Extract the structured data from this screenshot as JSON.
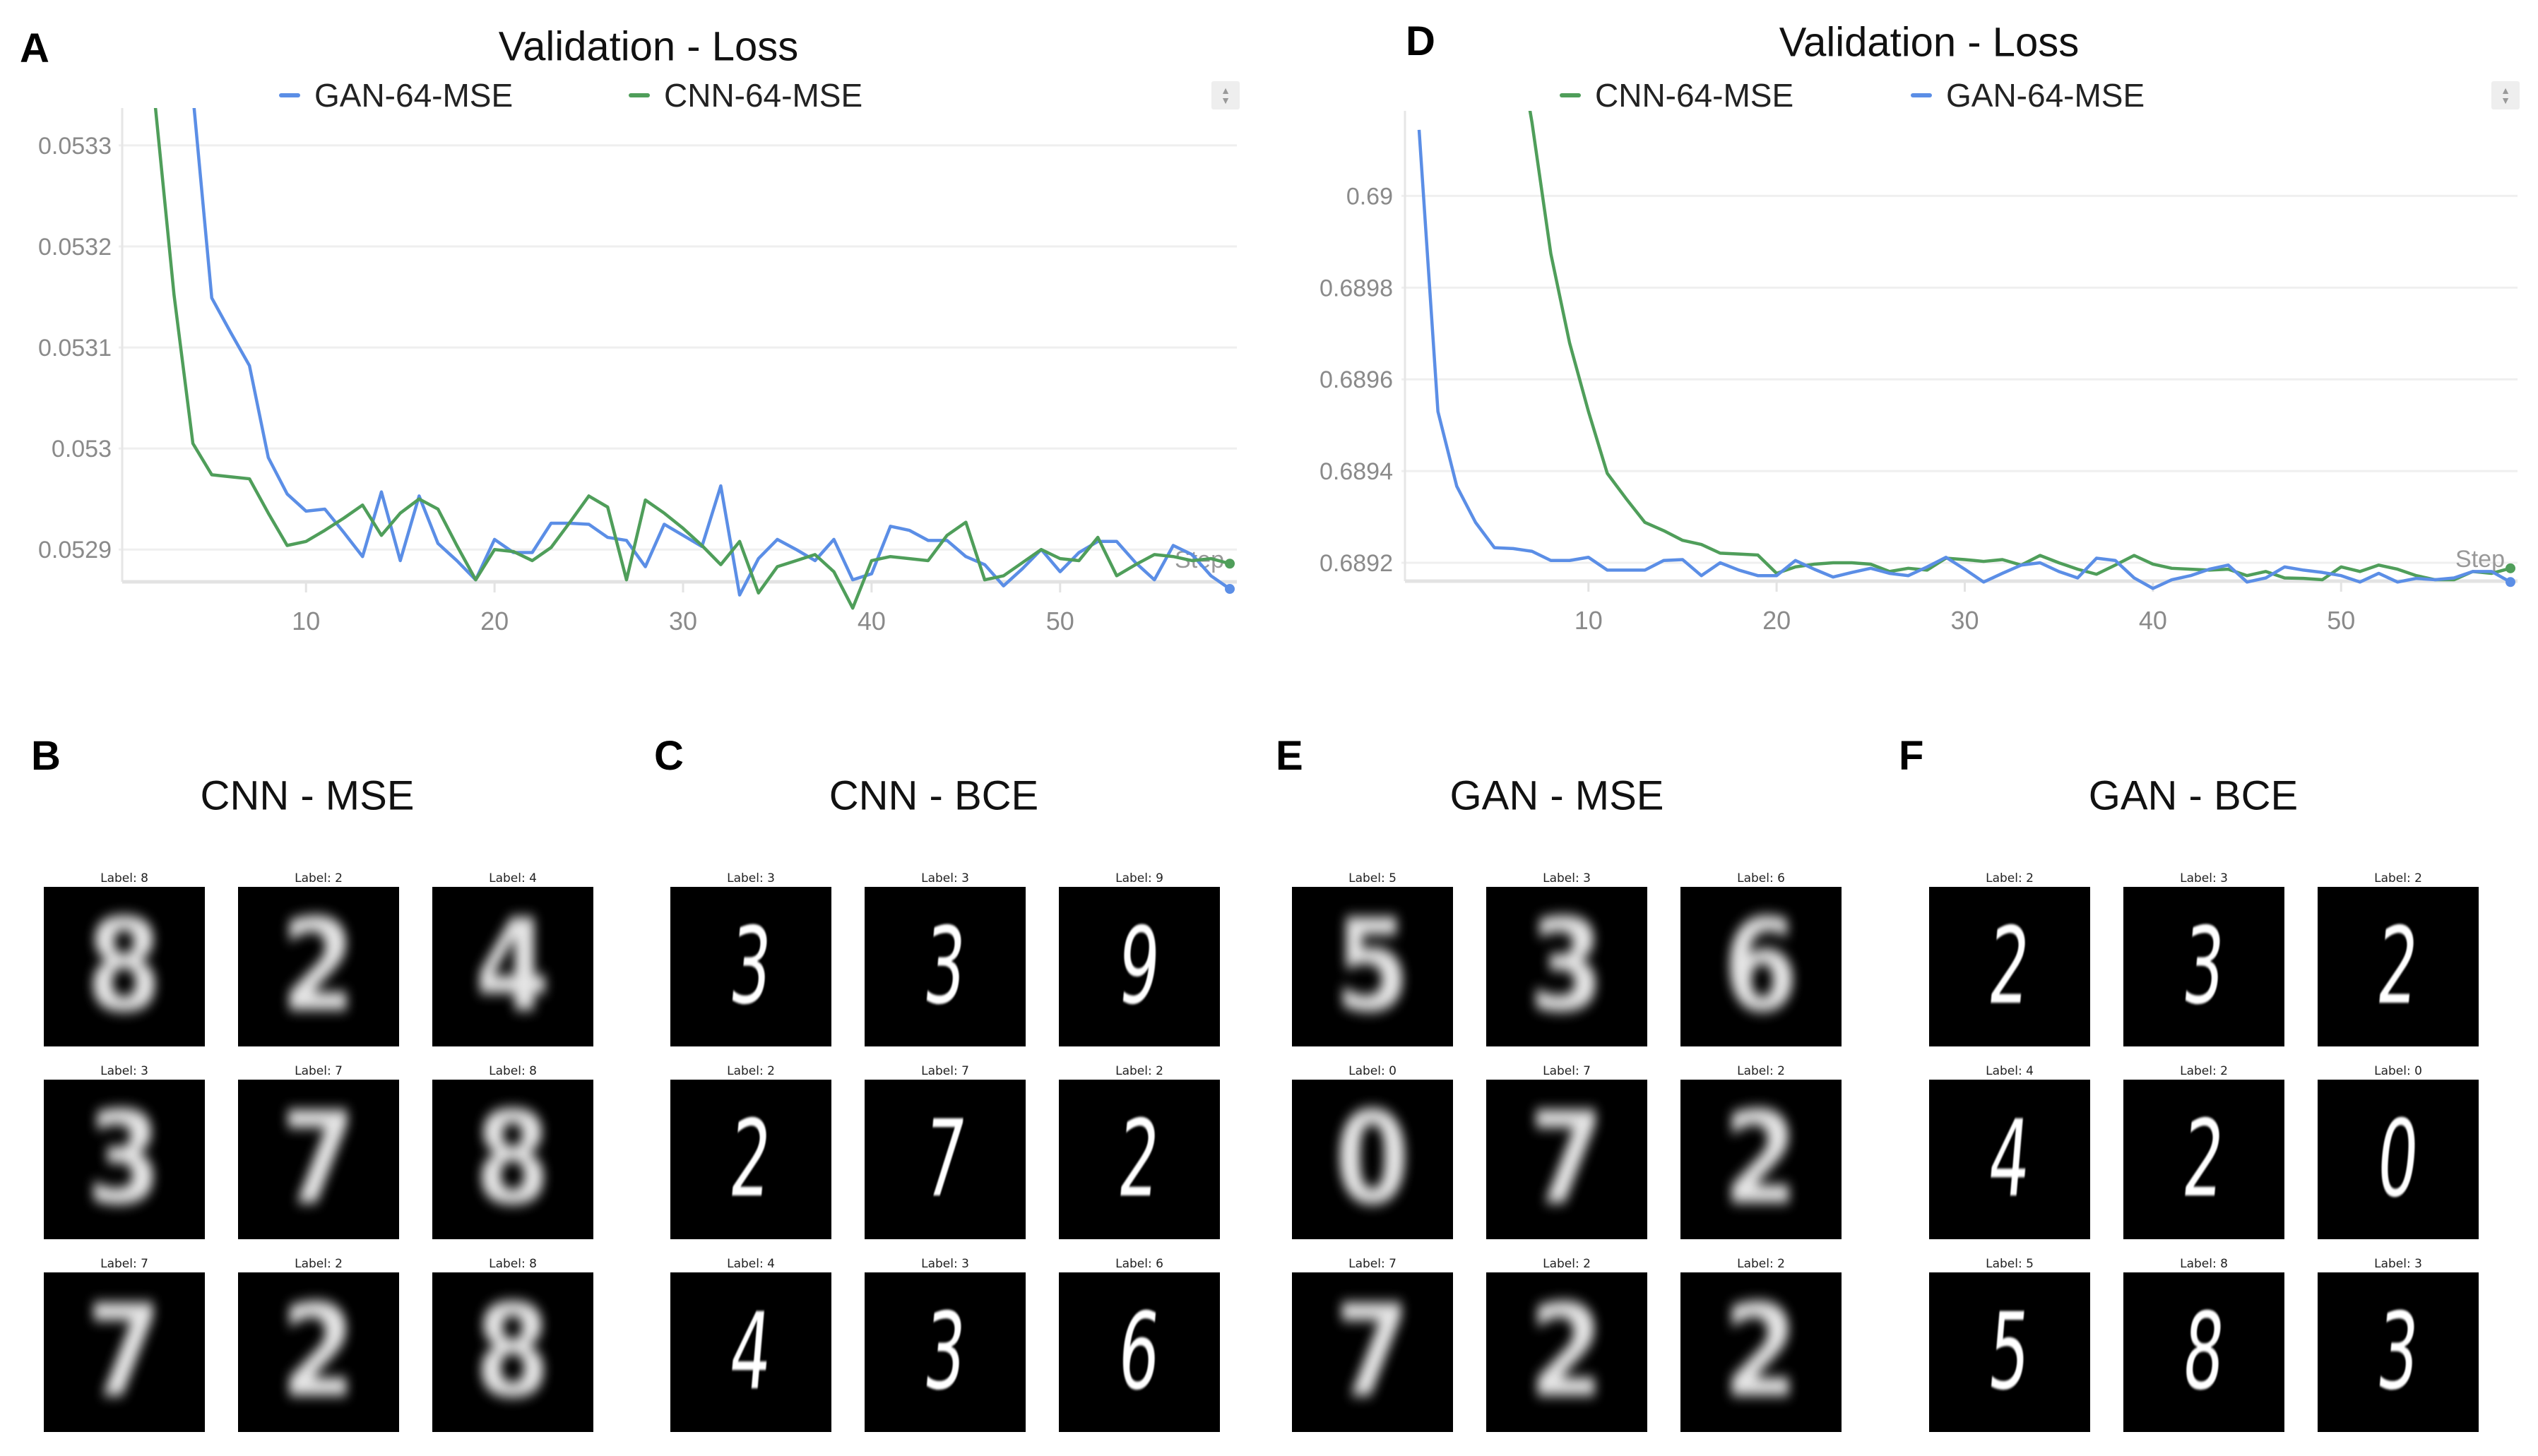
{
  "chart_data": [
    {
      "panel": "A",
      "type": "line",
      "title": "Validation - Loss",
      "xlabel": "Step",
      "ylabel": "",
      "xlim": [
        1,
        59
      ],
      "ylim": [
        0.052868,
        0.05333
      ],
      "xticks": [
        10,
        20,
        30,
        40,
        50
      ],
      "xtick_labels": [
        "10",
        "20",
        "30",
        "40",
        "50"
      ],
      "yticks": [
        0.0529,
        0.053,
        0.0531,
        0.0532,
        0.0533
      ],
      "ytick_labels": [
        "0.0529",
        "0.053",
        "0.0531",
        "0.0532",
        "0.0533"
      ],
      "grid": true,
      "legend_position": "top",
      "series": [
        {
          "name": "GAN-64-MSE",
          "color": "#5b8ee6",
          "x_start": 4,
          "values": [
            0.05335,
            0.053149,
            0.053115,
            0.053082,
            0.052991,
            0.052955,
            0.052938,
            0.05294,
            0.052917,
            0.052893,
            0.052957,
            0.052889,
            0.052953,
            0.052906,
            0.052889,
            0.05287,
            0.05291,
            0.052897,
            0.052897,
            0.052926,
            0.052926,
            0.052925,
            0.052912,
            0.052909,
            0.052883,
            0.052925,
            0.052914,
            0.052903,
            0.052963,
            0.052855,
            0.052891,
            0.05291,
            0.0529,
            0.052889,
            0.05291,
            0.05287,
            0.052876,
            0.052923,
            0.052919,
            0.052909,
            0.052909,
            0.052893,
            0.052885,
            0.052864,
            0.052881,
            0.0529,
            0.052878,
            0.052897,
            0.052908,
            0.052908,
            0.052887,
            0.05287,
            0.052904,
            0.052895,
            0.052874,
            0.052861
          ]
        },
        {
          "name": "CNN-64-MSE",
          "color": "#4f9e5a",
          "x_start": 2,
          "values": [
            0.05334,
            0.053152,
            0.053005,
            0.052974,
            0.052972,
            0.05297,
            0.052936,
            0.052904,
            0.052908,
            0.052919,
            0.052931,
            0.052944,
            0.052914,
            0.052936,
            0.05295,
            0.05294,
            0.052904,
            0.05287,
            0.0529,
            0.052898,
            0.052889,
            0.052902,
            0.052927,
            0.052953,
            0.052942,
            0.05287,
            0.052949,
            0.052936,
            0.052921,
            0.052904,
            0.052885,
            0.052908,
            0.052857,
            0.052883,
            0.052889,
            0.052895,
            0.052878,
            0.052842,
            0.052889,
            0.052893,
            0.052891,
            0.052889,
            0.052914,
            0.052927,
            0.05287,
            0.052874,
            0.052887,
            0.0529,
            0.052891,
            0.052889,
            0.052912,
            0.052874,
            0.052885,
            0.052895,
            0.052893,
            0.052889,
            0.052891,
            0.052886
          ]
        }
      ]
    },
    {
      "panel": "D",
      "type": "line",
      "title": "Validation - Loss",
      "xlabel": "Step",
      "ylabel": "",
      "xlim": [
        1,
        59
      ],
      "ylim": [
        0.68916,
        0.69017
      ],
      "xticks": [
        10,
        20,
        30,
        40,
        50
      ],
      "xtick_labels": [
        "10",
        "20",
        "30",
        "40",
        "50"
      ],
      "yticks": [
        0.6892,
        0.6894,
        0.6896,
        0.6898,
        0.69
      ],
      "ytick_labels": [
        "0.6892",
        "0.6894",
        "0.6896",
        "0.6898",
        "0.69"
      ],
      "grid": true,
      "legend_position": "top",
      "series": [
        {
          "name": "CNN-64-MSE",
          "color": "#4f9e5a",
          "x_start": 6,
          "values": [
            0.6904,
            0.69016,
            0.689874,
            0.689679,
            0.68953,
            0.689395,
            0.68934,
            0.689288,
            0.68927,
            0.689249,
            0.68924,
            0.689221,
            0.689219,
            0.689217,
            0.689177,
            0.689191,
            0.689197,
            0.6892,
            0.6892,
            0.689197,
            0.689181,
            0.689188,
            0.689184,
            0.68921,
            0.689207,
            0.689203,
            0.689207,
            0.689195,
            0.689216,
            0.6892,
            0.689186,
            0.689175,
            0.689195,
            0.689216,
            0.689197,
            0.689188,
            0.689186,
            0.689184,
            0.689186,
            0.689172,
            0.689181,
            0.689167,
            0.689166,
            0.689163,
            0.689191,
            0.689181,
            0.689195,
            0.689186,
            0.689172,
            0.689163,
            0.689163,
            0.689181,
            0.689177,
            0.689188
          ]
        },
        {
          "name": "GAN-64-MSE",
          "color": "#5b8ee6",
          "x_start": 1,
          "values": [
            0.690144,
            0.68953,
            0.689367,
            0.689288,
            0.689233,
            0.689231,
            0.689225,
            0.689205,
            0.689205,
            0.689212,
            0.689184,
            0.689184,
            0.689184,
            0.689205,
            0.689207,
            0.689172,
            0.6892,
            0.689184,
            0.689172,
            0.689172,
            0.689205,
            0.689186,
            0.689169,
            0.689179,
            0.689188,
            0.689177,
            0.689172,
            0.689191,
            0.689212,
            0.689186,
            0.689158,
            0.689177,
            0.689195,
            0.6892,
            0.689181,
            0.689167,
            0.68921,
            0.689205,
            0.689167,
            0.689144,
            0.689163,
            0.689172,
            0.689186,
            0.689195,
            0.689158,
            0.689167,
            0.689191,
            0.689184,
            0.689179,
            0.689172,
            0.689158,
            0.689177,
            0.689158,
            0.689166,
            0.689163,
            0.689167,
            0.689181,
            0.689181,
            0.689158
          ]
        }
      ]
    }
  ],
  "grids": [
    {
      "panel": "B",
      "title": "CNN - MSE",
      "style": "mse",
      "images": [
        {
          "label": "Label: 8",
          "digit": "8"
        },
        {
          "label": "Label: 2",
          "digit": "2"
        },
        {
          "label": "Label: 4",
          "digit": "4"
        },
        {
          "label": "Label: 3",
          "digit": "3"
        },
        {
          "label": "Label: 7",
          "digit": "7"
        },
        {
          "label": "Label: 8",
          "digit": "8"
        },
        {
          "label": "Label: 7",
          "digit": "7"
        },
        {
          "label": "Label: 2",
          "digit": "2"
        },
        {
          "label": "Label: 8",
          "digit": "8"
        }
      ]
    },
    {
      "panel": "C",
      "title": "CNN - BCE",
      "style": "bce",
      "images": [
        {
          "label": "Label: 3",
          "digit": "3"
        },
        {
          "label": "Label: 3",
          "digit": "3"
        },
        {
          "label": "Label: 9",
          "digit": "9"
        },
        {
          "label": "Label: 2",
          "digit": "2"
        },
        {
          "label": "Label: 7",
          "digit": "7"
        },
        {
          "label": "Label: 2",
          "digit": "2"
        },
        {
          "label": "Label: 4",
          "digit": "4"
        },
        {
          "label": "Label: 3",
          "digit": "3"
        },
        {
          "label": "Label: 6",
          "digit": "6"
        }
      ]
    },
    {
      "panel": "E",
      "title": "GAN - MSE",
      "style": "mse",
      "images": [
        {
          "label": "Label: 5",
          "digit": "5"
        },
        {
          "label": "Label: 3",
          "digit": "3"
        },
        {
          "label": "Label: 6",
          "digit": "6"
        },
        {
          "label": "Label: 0",
          "digit": "0"
        },
        {
          "label": "Label: 7",
          "digit": "7"
        },
        {
          "label": "Label: 2",
          "digit": "2"
        },
        {
          "label": "Label: 7",
          "digit": "7"
        },
        {
          "label": "Label: 2",
          "digit": "2"
        },
        {
          "label": "Label: 2",
          "digit": "2"
        }
      ]
    },
    {
      "panel": "F",
      "title": "GAN - BCE",
      "style": "bce",
      "images": [
        {
          "label": "Label: 2",
          "digit": "2"
        },
        {
          "label": "Label: 3",
          "digit": "3"
        },
        {
          "label": "Label: 2",
          "digit": "2"
        },
        {
          "label": "Label: 4",
          "digit": "4"
        },
        {
          "label": "Label: 2",
          "digit": "2"
        },
        {
          "label": "Label: 0",
          "digit": "0"
        },
        {
          "label": "Label: 5",
          "digit": "5"
        },
        {
          "label": "Label: 8",
          "digit": "8"
        },
        {
          "label": "Label: 3",
          "digit": "3"
        }
      ]
    }
  ]
}
